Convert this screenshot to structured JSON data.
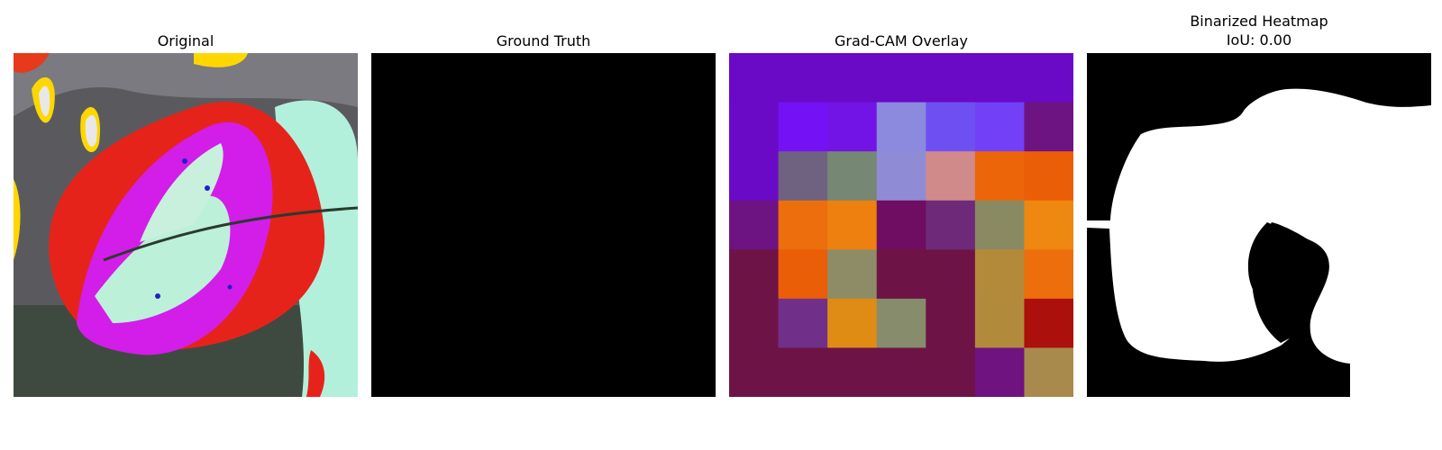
{
  "chart_data": [
    {
      "type": "image",
      "title": "Original"
    },
    {
      "type": "image",
      "title": "Ground Truth"
    },
    {
      "type": "heatmap",
      "title": "Grad-CAM Overlay",
      "rows": 7,
      "cols": 7,
      "cells": [
        [
          "#6a09c6",
          "#6a09c6",
          "#6a09c6",
          "#6a09c6",
          "#6a09c6",
          "#6a09c6",
          "#6a09c6"
        ],
        [
          "#6a0ac6",
          "#7511f5",
          "#7214e6",
          "#8b8ade",
          "#6e50f2",
          "#7240f6",
          "#6e1382"
        ],
        [
          "#6a0ac6",
          "#6e6280",
          "#768773",
          "#908bd5",
          "#d08a8a",
          "#ec6508",
          "#eb5e08"
        ],
        [
          "#6e1382",
          "#ec6e0c",
          "#ee8010",
          "#6e0d61",
          "#6e2a78",
          "#8a8a62",
          "#ee8810"
        ],
        [
          "#6e1345",
          "#ea5e08",
          "#8e8c66",
          "#6e1345",
          "#6e1345",
          "#b28a3a",
          "#ec6e0c"
        ],
        [
          "#6e1345",
          "#70308a",
          "#de8c14",
          "#868c6c",
          "#6e1345",
          "#b28a3c",
          "#ac100c"
        ],
        [
          "#6e1345",
          "#6e1345",
          "#6e1345",
          "#6e1345",
          "#6e1345",
          "#6e1380",
          "#a88a4c"
        ]
      ]
    },
    {
      "type": "image",
      "title_line1": "Binarized Heatmap",
      "title_line2": "IoU: 0.00",
      "iou": 0.0
    }
  ]
}
